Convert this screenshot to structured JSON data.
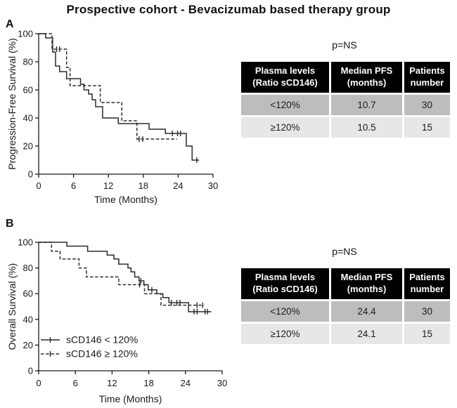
{
  "figure": {
    "title": "Prospective cohort - Bevacizumab based therapy group"
  },
  "colors": {
    "curve": "#2a2a2a",
    "axis": "#1a1a1a",
    "table_header_bg": "#000000",
    "table_header_text": "#ffffff",
    "row1_bg": "#bdbdbd",
    "row2_bg": "#e7e7e7"
  },
  "panels": [
    {
      "label": "A",
      "p_value": "p=NS",
      "table": {
        "headers": [
          "Plasma levels\n(Ratio sCD146)",
          "Median  PFS\n(months)",
          "Patients\nnumber"
        ],
        "rows": [
          [
            "<120%",
            "10.7",
            "30"
          ],
          [
            "≥120%",
            "10.5",
            "15"
          ]
        ]
      }
    },
    {
      "label": "B",
      "p_value": "p=NS",
      "table": {
        "headers": [
          "Plasma levels\n(Ratio sCD146)",
          "Median  PFS\n(months)",
          "Patients\nnumber"
        ],
        "rows": [
          [
            "<120%",
            "24.4",
            "30"
          ],
          [
            "≥120%",
            "24.1",
            "15"
          ]
        ]
      }
    }
  ],
  "chart_data": [
    {
      "type": "line",
      "subtype": "kaplan-meier-step",
      "panel": "A",
      "xlabel": "Time (Months)",
      "ylabel": "Progression-Free Survival (%)",
      "xlim": [
        0,
        30
      ],
      "ylim": [
        0,
        100
      ],
      "xticks": [
        0,
        6,
        12,
        18,
        24,
        30
      ],
      "yticks": [
        0,
        20,
        40,
        60,
        80,
        100
      ],
      "grid": false,
      "legend": null,
      "series": [
        {
          "name": "sCD146 < 120%",
          "style": "solid",
          "median_months": 10.7,
          "n": 30,
          "steps": [
            [
              0,
              100
            ],
            [
              1.2,
              97
            ],
            [
              2.4,
              87
            ],
            [
              2.9,
              77
            ],
            [
              3.6,
              73
            ],
            [
              4.8,
              68
            ],
            [
              7.2,
              64
            ],
            [
              7.8,
              60
            ],
            [
              8.6,
              57
            ],
            [
              9.2,
              53
            ],
            [
              9.8,
              48
            ],
            [
              11,
              40
            ],
            [
              13.7,
              36
            ],
            [
              19,
              32
            ],
            [
              21.8,
              29
            ],
            [
              25.4,
              20
            ],
            [
              26.4,
              10
            ]
          ],
          "end": 27.6,
          "censors": [
            [
              23.0,
              29
            ],
            [
              23.9,
              29
            ],
            [
              24.4,
              29
            ],
            [
              27.2,
              10
            ]
          ]
        },
        {
          "name": "sCD146 ≥ 120%",
          "style": "dashed",
          "median_months": 10.5,
          "n": 15,
          "steps": [
            [
              0,
              100
            ],
            [
              2.3,
              89
            ],
            [
              4.8,
              76
            ],
            [
              5.4,
              63
            ],
            [
              10.6,
              51
            ],
            [
              14.3,
              38
            ],
            [
              16.9,
              25
            ]
          ],
          "end": 23.8,
          "censors": [
            [
              3.1,
              89
            ],
            [
              3.6,
              89
            ],
            [
              17.3,
              25
            ],
            [
              17.9,
              25
            ]
          ]
        }
      ]
    },
    {
      "type": "line",
      "subtype": "kaplan-meier-step",
      "panel": "B",
      "xlabel": "Time (Months)",
      "ylabel": "Overall Survival (%)",
      "xlim": [
        0,
        30
      ],
      "ylim": [
        0,
        100
      ],
      "xticks": [
        0,
        6,
        12,
        18,
        24,
        30
      ],
      "yticks": [
        0,
        20,
        40,
        60,
        80,
        100
      ],
      "grid": false,
      "legend": {
        "position": "lower-left"
      },
      "series": [
        {
          "name": "sCD146 < 120%",
          "style": "solid",
          "median_months": 24.4,
          "n": 30,
          "steps": [
            [
              0,
              100
            ],
            [
              4.6,
              97
            ],
            [
              8,
              93
            ],
            [
              11.2,
              90
            ],
            [
              12.3,
              87
            ],
            [
              13.1,
              83
            ],
            [
              14.6,
              80
            ],
            [
              15.1,
              77
            ],
            [
              15.7,
              73
            ],
            [
              16.4,
              70
            ],
            [
              17.2,
              67
            ],
            [
              17.9,
              63
            ],
            [
              19.3,
              60
            ],
            [
              20.3,
              57
            ],
            [
              21.3,
              53
            ],
            [
              24.5,
              46
            ]
          ],
          "end": 28.2,
          "censors": [
            [
              16.7,
              70
            ],
            [
              18.5,
              63
            ],
            [
              21.7,
              53
            ],
            [
              22.6,
              53
            ],
            [
              23.1,
              53
            ],
            [
              25.4,
              46
            ],
            [
              25.9,
              46
            ],
            [
              27.2,
              46
            ],
            [
              27.6,
              46
            ]
          ]
        },
        {
          "name": "sCD146 ≥ 120%",
          "style": "dashed",
          "median_months": 24.1,
          "n": 15,
          "steps": [
            [
              0,
              100
            ],
            [
              2.1,
              93
            ],
            [
              3.5,
              87
            ],
            [
              6.6,
              80
            ],
            [
              7.8,
              73
            ],
            [
              13.1,
              67
            ],
            [
              17.3,
              60
            ],
            [
              20,
              51
            ]
          ],
          "end": 27.0,
          "censors": [
            [
              16.5,
              67
            ],
            [
              25.9,
              51
            ],
            [
              26.8,
              51
            ]
          ]
        }
      ]
    }
  ]
}
